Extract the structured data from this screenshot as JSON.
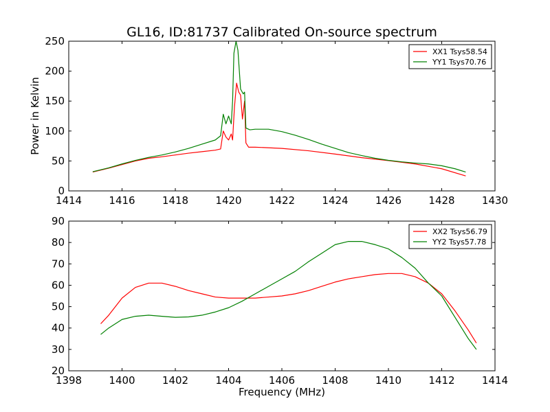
{
  "title": "GL16, ID:81737 Calibrated On-source spectrum",
  "chart_data": [
    {
      "type": "line",
      "ylabel": "Power in Kelvin",
      "xlabel": "",
      "xlim": [
        1414,
        1430
      ],
      "ylim": [
        0,
        250
      ],
      "xticks": [
        1414,
        1416,
        1418,
        1420,
        1422,
        1424,
        1426,
        1428,
        1430
      ],
      "yticks": [
        0,
        50,
        100,
        150,
        200,
        250
      ],
      "legend_position": "top-right",
      "grid": false,
      "series": [
        {
          "name": "XX1 Tsys58.54",
          "color": "#ff0000",
          "points": [
            [
              1414.9,
              31.5
            ],
            [
              1415.5,
              38
            ],
            [
              1416.0,
              44
            ],
            [
              1416.5,
              50
            ],
            [
              1417.0,
              54.5
            ],
            [
              1417.5,
              57
            ],
            [
              1418.0,
              60
            ],
            [
              1418.5,
              63
            ],
            [
              1419.0,
              65.5
            ],
            [
              1419.5,
              68
            ],
            [
              1419.7,
              70
            ],
            [
              1419.8,
              100
            ],
            [
              1419.9,
              90
            ],
            [
              1420.0,
              85
            ],
            [
              1420.1,
              95
            ],
            [
              1420.15,
              85
            ],
            [
              1420.22,
              140
            ],
            [
              1420.3,
              180
            ],
            [
              1420.38,
              165
            ],
            [
              1420.45,
              160
            ],
            [
              1420.52,
              120
            ],
            [
              1420.6,
              150
            ],
            [
              1420.65,
              80
            ],
            [
              1420.75,
              73
            ],
            [
              1421.0,
              73
            ],
            [
              1422.0,
              71
            ],
            [
              1423.0,
              67
            ],
            [
              1424.0,
              61.5
            ],
            [
              1425.0,
              55.5
            ],
            [
              1426.0,
              50.5
            ],
            [
              1427.0,
              45
            ],
            [
              1428.0,
              37
            ],
            [
              1428.9,
              25
            ]
          ]
        },
        {
          "name": "YY1 Tsys70.76",
          "color": "#008000",
          "points": [
            [
              1414.9,
              32
            ],
            [
              1415.5,
              38.5
            ],
            [
              1416.0,
              45
            ],
            [
              1416.5,
              51
            ],
            [
              1417.0,
              56
            ],
            [
              1417.5,
              60
            ],
            [
              1418.0,
              65
            ],
            [
              1418.5,
              71
            ],
            [
              1419.0,
              78
            ],
            [
              1419.5,
              85
            ],
            [
              1419.7,
              92
            ],
            [
              1419.8,
              128
            ],
            [
              1419.9,
              112
            ],
            [
              1420.0,
              125
            ],
            [
              1420.1,
              112
            ],
            [
              1420.15,
              150
            ],
            [
              1420.2,
              230
            ],
            [
              1420.28,
              250
            ],
            [
              1420.35,
              235
            ],
            [
              1420.45,
              170
            ],
            [
              1420.55,
              162
            ],
            [
              1420.6,
              165
            ],
            [
              1420.65,
              105
            ],
            [
              1420.8,
              102
            ],
            [
              1421.0,
              103
            ],
            [
              1421.5,
              103
            ],
            [
              1422.0,
              99
            ],
            [
              1422.5,
              93
            ],
            [
              1423.0,
              86
            ],
            [
              1423.5,
              78
            ],
            [
              1424.0,
              71
            ],
            [
              1424.5,
              64
            ],
            [
              1425.0,
              59
            ],
            [
              1425.5,
              54.5
            ],
            [
              1426.0,
              51
            ],
            [
              1426.5,
              48.5
            ],
            [
              1427.0,
              46.5
            ],
            [
              1427.5,
              45
            ],
            [
              1428.0,
              42
            ],
            [
              1428.5,
              37
            ],
            [
              1428.9,
              31.5
            ]
          ]
        }
      ]
    },
    {
      "type": "line",
      "ylabel": "",
      "xlabel": "Frequency (MHz)",
      "xlim": [
        1398,
        1414
      ],
      "ylim": [
        20,
        90
      ],
      "xticks": [
        1398,
        1400,
        1402,
        1404,
        1406,
        1408,
        1410,
        1412,
        1414
      ],
      "yticks": [
        20,
        30,
        40,
        50,
        60,
        70,
        80,
        90
      ],
      "legend_position": "top-right",
      "grid": false,
      "series": [
        {
          "name": "XX2 Tsys56.79",
          "color": "#ff0000",
          "points": [
            [
              1399.2,
              42
            ],
            [
              1399.5,
              46
            ],
            [
              1400.0,
              54
            ],
            [
              1400.5,
              59
            ],
            [
              1401.0,
              61
            ],
            [
              1401.5,
              61
            ],
            [
              1402.0,
              59.5
            ],
            [
              1402.5,
              57.5
            ],
            [
              1403.0,
              56
            ],
            [
              1403.5,
              54.5
            ],
            [
              1404.0,
              54
            ],
            [
              1404.5,
              54
            ],
            [
              1405.0,
              54
            ],
            [
              1405.5,
              54.5
            ],
            [
              1406.0,
              55
            ],
            [
              1406.5,
              56
            ],
            [
              1407.0,
              57.5
            ],
            [
              1407.5,
              59.5
            ],
            [
              1408.0,
              61.5
            ],
            [
              1408.5,
              63
            ],
            [
              1409.0,
              64
            ],
            [
              1409.5,
              65
            ],
            [
              1410.0,
              65.5
            ],
            [
              1410.5,
              65.5
            ],
            [
              1411.0,
              64
            ],
            [
              1411.5,
              61
            ],
            [
              1412.0,
              56
            ],
            [
              1412.5,
              48
            ],
            [
              1413.0,
              39
            ],
            [
              1413.3,
              33
            ]
          ]
        },
        {
          "name": "YY2 Tsys57.78",
          "color": "#008000",
          "points": [
            [
              1399.2,
              37
            ],
            [
              1399.5,
              40
            ],
            [
              1400.0,
              44
            ],
            [
              1400.5,
              45.5
            ],
            [
              1401.0,
              46
            ],
            [
              1401.5,
              45.5
            ],
            [
              1402.0,
              45
            ],
            [
              1402.5,
              45.2
            ],
            [
              1403.0,
              46
            ],
            [
              1403.5,
              47.5
            ],
            [
              1404.0,
              49.5
            ],
            [
              1404.5,
              52.5
            ],
            [
              1405.0,
              56
            ],
            [
              1405.5,
              59.5
            ],
            [
              1406.0,
              63
            ],
            [
              1406.5,
              66.5
            ],
            [
              1407.0,
              71
            ],
            [
              1407.5,
              75
            ],
            [
              1408.0,
              79
            ],
            [
              1408.5,
              80.5
            ],
            [
              1409.0,
              80.5
            ],
            [
              1409.5,
              79
            ],
            [
              1410.0,
              77
            ],
            [
              1410.5,
              73
            ],
            [
              1411.0,
              68
            ],
            [
              1411.5,
              61
            ],
            [
              1412.0,
              55
            ],
            [
              1412.5,
              45
            ],
            [
              1413.0,
              35
            ],
            [
              1413.3,
              30
            ]
          ]
        }
      ]
    }
  ]
}
